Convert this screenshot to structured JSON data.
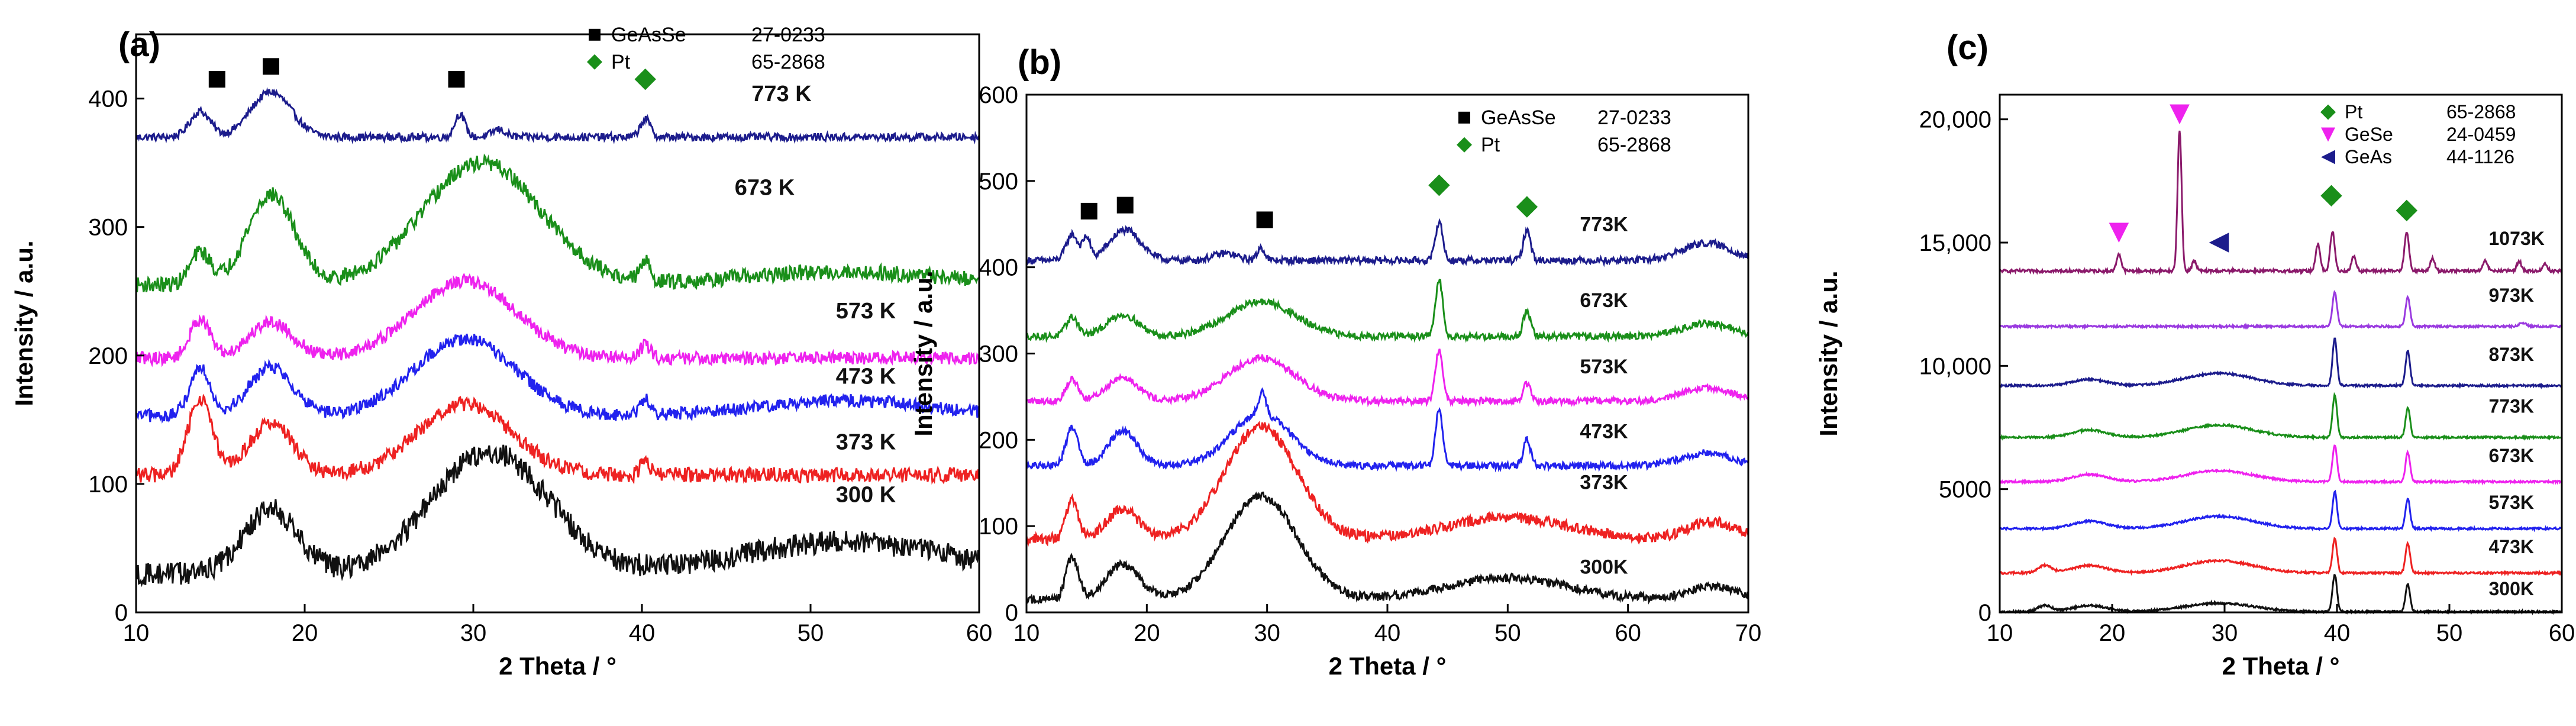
{
  "chart_data": [
    {
      "type": "line",
      "panel": "(a)",
      "xlabel": "2 Theta / °",
      "ylabel": "Intensity / a.u.",
      "xlim": [
        10,
        60
      ],
      "ylim": [
        0,
        450
      ],
      "xticks": [
        10,
        20,
        30,
        40,
        50,
        60
      ],
      "yticks": [
        0,
        100,
        200,
        300,
        400
      ],
      "ytick_labels": [
        "0",
        "100",
        "200",
        "300",
        "400"
      ],
      "legend": [
        {
          "symbol": "square",
          "color": "#000000",
          "name": "GeAsSe",
          "card": "27-0233"
        },
        {
          "symbol": "diamond",
          "color": "#1a8f1a",
          "name": "Pt",
          "card": "65-2868"
        }
      ],
      "markers": [
        {
          "symbol": "square",
          "color": "#000000",
          "x": 14.8,
          "y": 415
        },
        {
          "symbol": "square",
          "color": "#000000",
          "x": 18.0,
          "y": 425
        },
        {
          "symbol": "square",
          "color": "#000000",
          "x": 29.0,
          "y": 415
        },
        {
          "symbol": "diamond",
          "color": "#1a8f1a",
          "x": 40.2,
          "y": 415
        }
      ],
      "series": [
        {
          "name": "773 K",
          "color": "#1c1c8c",
          "baseline": 370,
          "noise": 3,
          "label_x": 46.5,
          "label_y": 398,
          "peaks": [
            [
              13.8,
              20,
              0.6
            ],
            [
              18.0,
              35,
              1.2
            ],
            [
              29.2,
              18,
              0.3
            ],
            [
              40.2,
              14,
              0.3
            ],
            [
              31.5,
              6,
              0.4
            ]
          ]
        },
        {
          "name": "673 K",
          "color": "#1a8f1a",
          "baseline": 255,
          "noise": 6,
          "label_x": 45.5,
          "label_y": 325,
          "peaks": [
            [
              18.0,
              70,
              1.4
            ],
            [
              30.5,
              95,
              3.5
            ],
            [
              13.8,
              25,
              0.6
            ],
            [
              40.2,
              15,
              0.3
            ],
            [
              52,
              10,
              6
            ]
          ]
        },
        {
          "name": "573 K",
          "color": "#ee22ee",
          "baseline": 198,
          "noise": 5,
          "label_x": 51.5,
          "label_y": 229,
          "peaks": [
            [
              13.8,
              30,
              0.6
            ],
            [
              18.0,
              28,
              1.3
            ],
            [
              29.5,
              60,
              3.0
            ],
            [
              40.2,
              10,
              0.3
            ]
          ]
        },
        {
          "name": "473 K",
          "color": "#2222ee",
          "baseline": 153,
          "noise": 5,
          "label_x": 51.5,
          "label_y": 178,
          "peaks": [
            [
              13.8,
              38,
              0.6
            ],
            [
              18.0,
              38,
              1.3
            ],
            [
              29.5,
              60,
              3.0
            ],
            [
              40.2,
              12,
              0.3
            ],
            [
              52,
              12,
              5
            ]
          ]
        },
        {
          "name": "373 K",
          "color": "#ee2222",
          "baseline": 107,
          "noise": 6,
          "label_x": 51.5,
          "label_y": 127,
          "peaks": [
            [
              13.8,
              60,
              0.7
            ],
            [
              18.0,
              40,
              1.3
            ],
            [
              29.5,
              55,
              2.8
            ],
            [
              40.2,
              10,
              0.3
            ]
          ]
        },
        {
          "name": "300 K",
          "color": "#111111",
          "baseline": 30,
          "noise": 9,
          "label_x": 51.5,
          "label_y": 86,
          "peaks": [
            [
              18.0,
              50,
              1.6
            ],
            [
              31.0,
              95,
              3.5
            ],
            [
              52.0,
              25,
              6.0
            ]
          ]
        }
      ]
    },
    {
      "type": "line",
      "panel": "(b)",
      "xlabel": "2 Theta / °",
      "ylabel": "Intensity / a.u.",
      "xlim": [
        10,
        70
      ],
      "ylim": [
        0,
        600
      ],
      "xticks": [
        10,
        20,
        30,
        40,
        50,
        60,
        70
      ],
      "yticks": [
        0,
        100,
        200,
        300,
        400,
        500,
        600
      ],
      "ytick_labels": [
        "0",
        "100",
        "200",
        "300",
        "400",
        "500",
        "600"
      ],
      "legend": [
        {
          "symbol": "square",
          "color": "#000000",
          "name": "GeAsSe",
          "card": "27-0233"
        },
        {
          "symbol": "diamond",
          "color": "#1a8f1a",
          "name": "Pt",
          "card": "65-2868"
        }
      ],
      "markers": [
        {
          "symbol": "square",
          "color": "#000000",
          "x": 15.2,
          "y": 465
        },
        {
          "symbol": "square",
          "color": "#000000",
          "x": 18.2,
          "y": 472
        },
        {
          "symbol": "square",
          "color": "#000000",
          "x": 29.8,
          "y": 455
        },
        {
          "symbol": "diamond",
          "color": "#1a8f1a",
          "x": 44.3,
          "y": 495
        },
        {
          "symbol": "diamond",
          "color": "#1a8f1a",
          "x": 51.6,
          "y": 470
        }
      ],
      "series": [
        {
          "name": "773K",
          "color": "#1c1c8c",
          "baseline": 408,
          "noise": 4,
          "label_x": 56,
          "label_y": 442,
          "peaks": [
            [
              13.8,
              30,
              0.5
            ],
            [
              15.0,
              25,
              0.3
            ],
            [
              18.2,
              35,
              1.3
            ],
            [
              29.5,
              15,
              0.3
            ],
            [
              26.5,
              8,
              1
            ],
            [
              44.3,
              45,
              0.3
            ],
            [
              51.6,
              35,
              0.3
            ],
            [
              66.5,
              20,
              2
            ]
          ]
        },
        {
          "name": "673K",
          "color": "#1a8f1a",
          "baseline": 320,
          "noise": 4,
          "label_x": 56,
          "label_y": 354,
          "peaks": [
            [
              13.8,
              22,
              0.5
            ],
            [
              18.0,
              25,
              1.3
            ],
            [
              29.5,
              40,
              2.8
            ],
            [
              44.3,
              65,
              0.3
            ],
            [
              51.6,
              30,
              0.3
            ],
            [
              66.5,
              15,
              2
            ]
          ]
        },
        {
          "name": "573K",
          "color": "#ee22ee",
          "baseline": 245,
          "noise": 4,
          "label_x": 56,
          "label_y": 277,
          "peaks": [
            [
              13.8,
              25,
              0.5
            ],
            [
              18.0,
              28,
              1.3
            ],
            [
              29.5,
              50,
              2.8
            ],
            [
              44.3,
              60,
              0.3
            ],
            [
              51.6,
              20,
              0.3
            ],
            [
              66.5,
              15,
              2
            ]
          ]
        },
        {
          "name": "473K",
          "color": "#2222ee",
          "baseline": 170,
          "noise": 4,
          "label_x": 56,
          "label_y": 202,
          "peaks": [
            [
              13.8,
              45,
              0.5
            ],
            [
              18.0,
              40,
              1.2
            ],
            [
              29.5,
              60,
              2.5
            ],
            [
              29.6,
              25,
              0.3
            ],
            [
              44.3,
              65,
              0.3
            ],
            [
              51.6,
              30,
              0.3
            ],
            [
              66.5,
              15,
              2
            ]
          ]
        },
        {
          "name": "373K",
          "color": "#ee2222",
          "baseline": 85,
          "noise": 6,
          "label_x": 56,
          "label_y": 143,
          "peaks": [
            [
              13.8,
              45,
              0.5
            ],
            [
              18.0,
              35,
              1.3
            ],
            [
              29.5,
              130,
              3.0
            ],
            [
              50,
              25,
              5
            ],
            [
              67,
              20,
              2
            ]
          ]
        },
        {
          "name": "300K",
          "color": "#111111",
          "baseline": 15,
          "noise": 5,
          "label_x": 56,
          "label_y": 45,
          "peaks": [
            [
              13.8,
              50,
              0.5
            ],
            [
              18.0,
              40,
              1.4
            ],
            [
              29.5,
              120,
              3.0
            ],
            [
              50,
              25,
              5
            ],
            [
              67,
              15,
              2
            ]
          ]
        }
      ]
    },
    {
      "type": "line",
      "panel": "(c)",
      "xlabel": "2 Theta / °",
      "ylabel": "Intensity / a.u.",
      "xlim": [
        10,
        60
      ],
      "ylim": [
        0,
        21000
      ],
      "xticks": [
        10,
        20,
        30,
        40,
        50,
        60
      ],
      "yticks": [
        0,
        5000,
        10000,
        15000,
        20000
      ],
      "ytick_labels": [
        "0",
        "5000",
        "10,000",
        "15,000",
        "20,000"
      ],
      "legend": [
        {
          "symbol": "diamond",
          "color": "#1a8f1a",
          "name": "Pt",
          "card": "65-2868"
        },
        {
          "symbol": "triangle-down",
          "color": "#ee22ee",
          "name": "GeSe",
          "card": "24-0459"
        },
        {
          "symbol": "triangle-left",
          "color": "#1c1c8c",
          "name": "GeAs",
          "card": "44-1126"
        }
      ],
      "markers": [
        {
          "symbol": "triangle-down",
          "color": "#ee22ee",
          "x": 20.6,
          "y": 15400
        },
        {
          "symbol": "triangle-down",
          "color": "#ee22ee",
          "x": 26.0,
          "y": 20200
        },
        {
          "symbol": "triangle-left",
          "color": "#1c1c8c",
          "x": 29.5,
          "y": 15000
        },
        {
          "symbol": "diamond",
          "color": "#1a8f1a",
          "x": 39.5,
          "y": 16900
        },
        {
          "symbol": "diamond",
          "color": "#1a8f1a",
          "x": 46.2,
          "y": 16300
        }
      ],
      "series": [
        {
          "name": "1073K",
          "color": "#8b1a6b",
          "baseline": 13850,
          "noise": 60,
          "label_x": 53.5,
          "label_y": 14900,
          "peaks": [
            [
              20.6,
              700,
              0.2
            ],
            [
              26.0,
              5700,
              0.18
            ],
            [
              27.3,
              400,
              0.2
            ],
            [
              38.3,
              1100,
              0.2
            ],
            [
              39.6,
              1600,
              0.2
            ],
            [
              41.5,
              600,
              0.2
            ],
            [
              46.2,
              1600,
              0.2
            ],
            [
              48.5,
              500,
              0.2
            ],
            [
              53.2,
              400,
              0.2
            ],
            [
              56.2,
              400,
              0.2
            ],
            [
              58.5,
              300,
              0.2
            ]
          ]
        },
        {
          "name": "973K",
          "color": "#9a3ae0",
          "baseline": 11600,
          "noise": 40,
          "label_x": 53.5,
          "label_y": 12600,
          "peaks": [
            [
              39.8,
              1400,
              0.2
            ],
            [
              46.3,
              1200,
              0.2
            ],
            [
              56.5,
              150,
              0.3
            ]
          ]
        },
        {
          "name": "873K",
          "color": "#1c1c8c",
          "baseline": 9200,
          "noise": 40,
          "label_x": 53.5,
          "label_y": 10200,
          "peaks": [
            [
              39.8,
              1900,
              0.2
            ],
            [
              46.3,
              1400,
              0.2
            ],
            [
              18,
              250,
              1.5
            ],
            [
              29.5,
              500,
              3
            ]
          ]
        },
        {
          "name": "773K",
          "color": "#1a8f1a",
          "baseline": 7100,
          "noise": 40,
          "label_x": 53.5,
          "label_y": 8100,
          "peaks": [
            [
              39.8,
              1700,
              0.2
            ],
            [
              46.3,
              1200,
              0.2
            ],
            [
              18,
              300,
              1.5
            ],
            [
              29.5,
              500,
              3
            ]
          ]
        },
        {
          "name": "673K",
          "color": "#ee22ee",
          "baseline": 5300,
          "noise": 40,
          "label_x": 53.5,
          "label_y": 6100,
          "peaks": [
            [
              39.8,
              1500,
              0.2
            ],
            [
              46.3,
              1200,
              0.2
            ],
            [
              18,
              300,
              1.5
            ],
            [
              29.5,
              450,
              3
            ]
          ]
        },
        {
          "name": "573K",
          "color": "#2222ee",
          "baseline": 3400,
          "noise": 40,
          "label_x": 53.5,
          "label_y": 4200,
          "peaks": [
            [
              39.8,
              1500,
              0.2
            ],
            [
              46.3,
              1200,
              0.2
            ],
            [
              18,
              300,
              1.5
            ],
            [
              29.5,
              500,
              3
            ]
          ]
        },
        {
          "name": "473K",
          "color": "#ee2222",
          "baseline": 1600,
          "noise": 40,
          "label_x": 53.5,
          "label_y": 2400,
          "peaks": [
            [
              39.8,
              1400,
              0.2
            ],
            [
              46.3,
              1200,
              0.2
            ],
            [
              14,
              300,
              0.6
            ],
            [
              18,
              300,
              1.5
            ],
            [
              29.5,
              500,
              3
            ]
          ]
        },
        {
          "name": "300K",
          "color": "#111111",
          "baseline": 30,
          "noise": 40,
          "label_x": 53.5,
          "label_y": 700,
          "peaks": [
            [
              39.8,
              1500,
              0.2
            ],
            [
              46.3,
              1100,
              0.2
            ],
            [
              14,
              250,
              0.6
            ],
            [
              18,
              250,
              1.5
            ],
            [
              29.5,
              350,
              3
            ]
          ]
        }
      ]
    }
  ]
}
